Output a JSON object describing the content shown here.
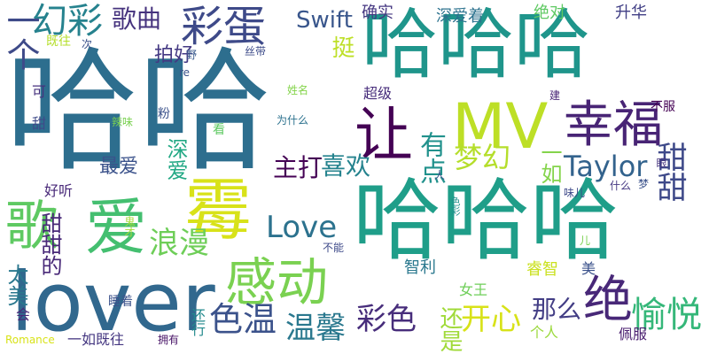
{
  "words": [
    {
      "text": "哈哈",
      "color": "#2d6e8e"
    },
    {
      "text": "哈哈哈",
      "color": "#1f958b"
    },
    {
      "text": "哈哈哈",
      "color": "#1f9e89"
    },
    {
      "text": "lover",
      "color": "#31688e"
    },
    {
      "text": "霉",
      "color": "#d8e219"
    },
    {
      "text": "爱",
      "color": "#44bf70"
    },
    {
      "text": "感动",
      "color": "#7ad151"
    },
    {
      "text": "幸福",
      "color": "#482475"
    },
    {
      "text": "MV",
      "color": "#bddf26"
    },
    {
      "text": "让",
      "color": "#440154"
    },
    {
      "text": "绝",
      "color": "#482878"
    },
    {
      "text": "歌",
      "color": "#5ec962"
    },
    {
      "text": "彩蛋",
      "color": "#3e4a89"
    },
    {
      "text": "幻彩",
      "color": "#26828e"
    },
    {
      "text": "歌曲",
      "color": "#46337e"
    },
    {
      "text": "Swift",
      "color": "#39568c"
    },
    {
      "text": "Love",
      "color": "#2c728e"
    },
    {
      "text": "Taylor",
      "color": "#33638d"
    },
    {
      "text": "梦幻",
      "color": "#b5de2b"
    },
    {
      "text": "有点",
      "color": "#21918c"
    },
    {
      "text": "喜欢",
      "color": "#25838e"
    },
    {
      "text": "主打",
      "color": "#440154"
    },
    {
      "text": "浪漫",
      "color": "#6ece58"
    },
    {
      "text": "温馨",
      "color": "#2a788e"
    },
    {
      "text": "色温",
      "color": "#3b528b"
    },
    {
      "text": "彩色",
      "color": "#472d7b"
    },
    {
      "text": "开心",
      "color": "#d8e219"
    },
    {
      "text": "愉悦",
      "color": "#35b779"
    },
    {
      "text": "那么",
      "color": "#433e85"
    },
    {
      "text": "一个",
      "color": "#3e4a89"
    },
    {
      "text": "挺",
      "color": "#bddf26"
    },
    {
      "text": "甜甜",
      "color": "#3e4989"
    },
    {
      "text": "一如",
      "color": "#84d44b"
    },
    {
      "text": "最爱",
      "color": "#3b528b"
    },
    {
      "text": "拍好",
      "color": "#443983"
    },
    {
      "text": "深爱",
      "color": "#22a884"
    },
    {
      "text": "太美",
      "color": "#2a788e"
    },
    {
      "text": "甜甜的",
      "color": "#482878"
    },
    {
      "text": "还是",
      "color": "#a0da39"
    },
    {
      "text": "确实",
      "color": "#453781"
    },
    {
      "text": "深爱着",
      "color": "#2c728e"
    },
    {
      "text": "绝对",
      "color": "#5ec962"
    },
    {
      "text": "升华",
      "color": "#424086"
    },
    {
      "text": "超级",
      "color": "#472d7b"
    },
    {
      "text": "智利",
      "color": "#2a788e"
    },
    {
      "text": "女王",
      "color": "#6ece58"
    },
    {
      "text": "睿智",
      "color": "#cae11f"
    },
    {
      "text": "个人",
      "color": "#9bd93c"
    },
    {
      "text": "佩服",
      "color": "#481c6e"
    },
    {
      "text": "美",
      "color": "#3b528b"
    },
    {
      "text": "好听",
      "color": "#482878"
    },
    {
      "text": "一如既往",
      "color": "#453781"
    },
    {
      "text": "Romance",
      "color": "#d8e219"
    },
    {
      "text": "睡着",
      "color": "#3b528b"
    },
    {
      "text": "还行",
      "color": "#238a8d"
    },
    {
      "text": "拥有",
      "color": "#481467"
    },
    {
      "text": "既往",
      "color": "#b5de2b"
    },
    {
      "text": "次",
      "color": "#3b528b"
    },
    {
      "text": "甜",
      "color": "#3e4a89"
    },
    {
      "text": "可",
      "color": "#46327e"
    },
    {
      "text": "会",
      "color": "#482878"
    },
    {
      "text": "辣味",
      "color": "#7ad151"
    },
    {
      "text": "粉",
      "color": "#3b528b"
    },
    {
      "text": "看",
      "color": "#5ec962"
    },
    {
      "text": "为什么",
      "color": "#2c728e"
    },
    {
      "text": "姓名",
      "color": "#84d44b"
    },
    {
      "text": "re",
      "color": "#3b528b"
    },
    {
      "text": "野",
      "color": "#38598c"
    },
    {
      "text": "丝带",
      "color": "#3e4c8a"
    },
    {
      "text": "建",
      "color": "#482475"
    },
    {
      "text": "不服",
      "color": "#440154"
    },
    {
      "text": "眼",
      "color": "#46327e"
    },
    {
      "text": "什么",
      "color": "#453882"
    },
    {
      "text": "梦",
      "color": "#3b528b"
    },
    {
      "text": "味儿",
      "color": "#3e4a89"
    },
    {
      "text": "人",
      "color": "#3b528b"
    },
    {
      "text": "色彩",
      "color": "#21918c"
    },
    {
      "text": "鬼才",
      "color": "#a5db36"
    },
    {
      "text": "不能",
      "color": "#3e4a89"
    },
    {
      "text": "儿",
      "color": "#7ad151"
    }
  ]
}
